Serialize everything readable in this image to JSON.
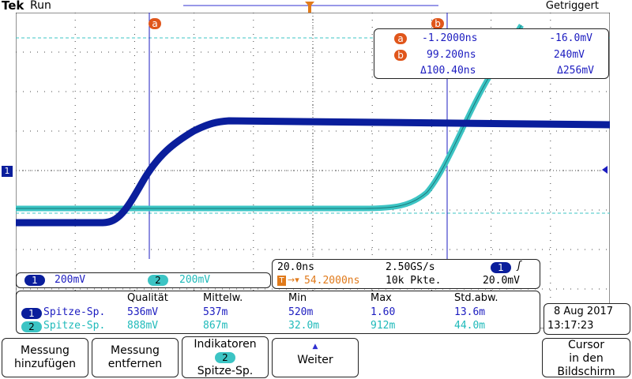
{
  "header": {
    "brand": "Tek",
    "run_state": "Run",
    "trigger_status": "Getriggert"
  },
  "cursors": {
    "a_label": "a",
    "b_label": "b",
    "a_time": "-1.2000ns",
    "a_volt": "-16.0mV",
    "b_time": "99.200ns",
    "b_volt": "240mV",
    "delta_time": "Δ100.40ns",
    "delta_volt": "Δ256mV"
  },
  "markers": {
    "trigger": "T",
    "ch1_ground": "1"
  },
  "channels": {
    "ch1": {
      "num": "1",
      "scale": "200mV",
      "color": "#0a1e9c"
    },
    "ch2": {
      "num": "2",
      "scale": "200mV",
      "color": "#3cc4c4"
    }
  },
  "acquisition": {
    "timebase": "20.0ns",
    "sample_rate": "2.50GS/s",
    "trigger_pos": "54.2000ns",
    "record_length": "10k Pkte.",
    "trigger_source": "1",
    "trigger_slope": "ʃ",
    "trigger_level": "20.0mV"
  },
  "measurements": {
    "headers": [
      "Qualität",
      "Mittelw.",
      "Min",
      "Max",
      "Std.abw."
    ],
    "rows": [
      {
        "ch": "1",
        "type": "Spitze-Sp.",
        "values": [
          "536mV",
          "537m",
          "520m",
          "1.60",
          "13.6m"
        ]
      },
      {
        "ch": "2",
        "type": "Spitze-Sp.",
        "values": [
          "888mV",
          "867m",
          "32.0m",
          "912m",
          "44.0m"
        ]
      }
    ]
  },
  "datetime": {
    "date": "8 Aug 2017",
    "time": "13:17:23"
  },
  "buttons": {
    "add_measurement": [
      "Messung",
      "hinzufügen"
    ],
    "remove_measurement": [
      "Messung",
      "entfernen"
    ],
    "indicators": {
      "title": "Indikatoren",
      "chip": "2",
      "sub": "Spitze-Sp."
    },
    "more": {
      "arrow": "▲",
      "label": "Weiter"
    },
    "cursor_screen": [
      "Cursor",
      "in den",
      "Bildschirm"
    ]
  }
}
